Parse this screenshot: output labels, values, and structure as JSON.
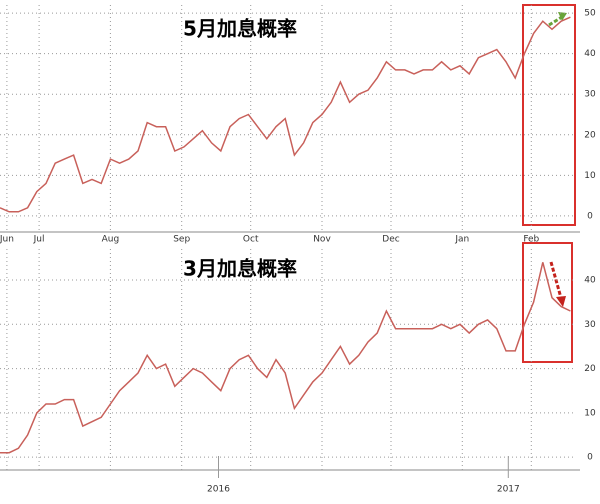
{
  "chart_data": [
    {
      "type": "line",
      "title": "5月加息概率",
      "x": [
        0,
        4,
        8,
        12,
        16,
        20,
        24,
        28,
        32,
        36,
        40,
        44,
        48,
        52,
        56,
        60,
        64,
        68,
        72,
        76,
        80,
        84,
        88,
        92,
        96,
        100,
        104,
        108,
        112,
        116,
        120,
        124,
        128,
        132,
        136,
        140,
        144,
        148,
        152,
        156,
        160,
        164,
        168,
        172,
        176,
        180,
        184,
        188,
        192,
        196,
        200,
        204,
        208,
        212,
        216,
        220,
        224,
        228,
        232,
        236,
        240,
        244,
        248
      ],
      "values": [
        2,
        1,
        1,
        2,
        6,
        8,
        13,
        14,
        15,
        8,
        9,
        8,
        14,
        13,
        14,
        16,
        23,
        22,
        22,
        16,
        17,
        19,
        21,
        18,
        16,
        22,
        24,
        25,
        22,
        19,
        22,
        24,
        15,
        18,
        23,
        25,
        28,
        33,
        28,
        30,
        31,
        34,
        38,
        36,
        36,
        35,
        36,
        36,
        38,
        36,
        37,
        35,
        39,
        40,
        41,
        38,
        34,
        40,
        45,
        48,
        46,
        48,
        49
      ],
      "color": "#c8605a",
      "xlim": [
        0,
        250
      ],
      "ylim": [
        -2,
        52
      ],
      "xticks": [
        {
          "value": 3,
          "label": "Jun"
        },
        {
          "value": 17,
          "label": "Jul"
        },
        {
          "value": 48,
          "label": "Aug"
        },
        {
          "value": 79,
          "label": "Sep"
        },
        {
          "value": 109,
          "label": "Oct"
        },
        {
          "value": 140,
          "label": "Nov"
        },
        {
          "value": 170,
          "label": "Dec"
        },
        {
          "value": 201,
          "label": "Jan"
        },
        {
          "value": 231,
          "label": "Feb"
        }
      ],
      "yticks": [
        0,
        10,
        20,
        30,
        40,
        50
      ],
      "grid": true
    },
    {
      "type": "line",
      "title": "3月加息概率",
      "x": [
        0,
        4,
        8,
        12,
        16,
        20,
        24,
        28,
        32,
        36,
        40,
        44,
        48,
        52,
        56,
        60,
        64,
        68,
        72,
        76,
        80,
        84,
        88,
        92,
        96,
        100,
        104,
        108,
        112,
        116,
        120,
        124,
        128,
        132,
        136,
        140,
        144,
        148,
        152,
        156,
        160,
        164,
        168,
        172,
        176,
        180,
        184,
        188,
        192,
        196,
        200,
        204,
        208,
        212,
        216,
        220,
        224,
        228,
        232,
        236,
        240,
        244,
        248
      ],
      "values": [
        1,
        1,
        2,
        5,
        10,
        12,
        12,
        13,
        13,
        7,
        8,
        9,
        12,
        15,
        17,
        19,
        23,
        20,
        21,
        16,
        18,
        20,
        19,
        17,
        15,
        20,
        22,
        23,
        20,
        18,
        22,
        19,
        11,
        14,
        17,
        19,
        22,
        25,
        21,
        23,
        26,
        28,
        33,
        29,
        29,
        29,
        29,
        29,
        30,
        29,
        30,
        28,
        30,
        31,
        29,
        24,
        24,
        30,
        35,
        44,
        36,
        34,
        33
      ],
      "color": "#c8605a",
      "xlim": [
        0,
        250
      ],
      "ylim": [
        -2,
        47
      ],
      "yticks": [
        0,
        10,
        20,
        30,
        40
      ],
      "grid": true,
      "annotations": [
        {
          "x": 95,
          "text": "2016"
        },
        {
          "x": 221,
          "text": "2017"
        }
      ]
    }
  ]
}
